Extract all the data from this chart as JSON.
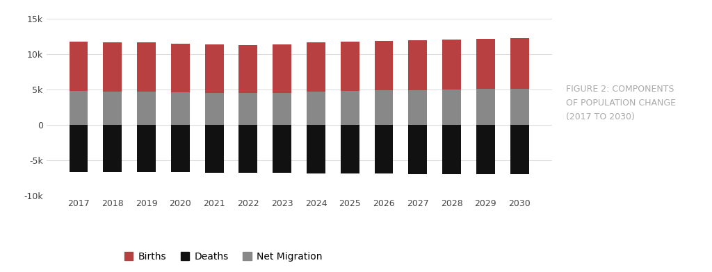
{
  "years": [
    2017,
    2018,
    2019,
    2020,
    2021,
    2022,
    2023,
    2024,
    2025,
    2026,
    2027,
    2028,
    2029,
    2030
  ],
  "births": [
    7000,
    7000,
    7000,
    6900,
    6850,
    6850,
    6900,
    7000,
    7000,
    7000,
    7050,
    7050,
    7100,
    7150
  ],
  "deaths": [
    -6600,
    -6600,
    -6650,
    -6650,
    -6700,
    -6750,
    -6750,
    -6800,
    -6800,
    -6850,
    -6900,
    -6900,
    -6950,
    -6950
  ],
  "net_migration": [
    4800,
    4750,
    4700,
    4600,
    4550,
    4500,
    4550,
    4700,
    4800,
    4900,
    4950,
    5050,
    5100,
    5150
  ],
  "births_color": "#b94040",
  "deaths_color": "#111111",
  "net_migration_color": "#888888",
  "background_color": "#ffffff",
  "ylim": [
    -10000,
    15000
  ],
  "yticks": [
    -10000,
    -5000,
    0,
    5000,
    10000,
    15000
  ],
  "figure_title": "FIGURE 2: COMPONENTS\nOF POPULATION CHANGE\n(2017 TO 2030)",
  "legend_labels": [
    "Births",
    "Deaths",
    "Net Migration"
  ],
  "bar_width": 0.55
}
